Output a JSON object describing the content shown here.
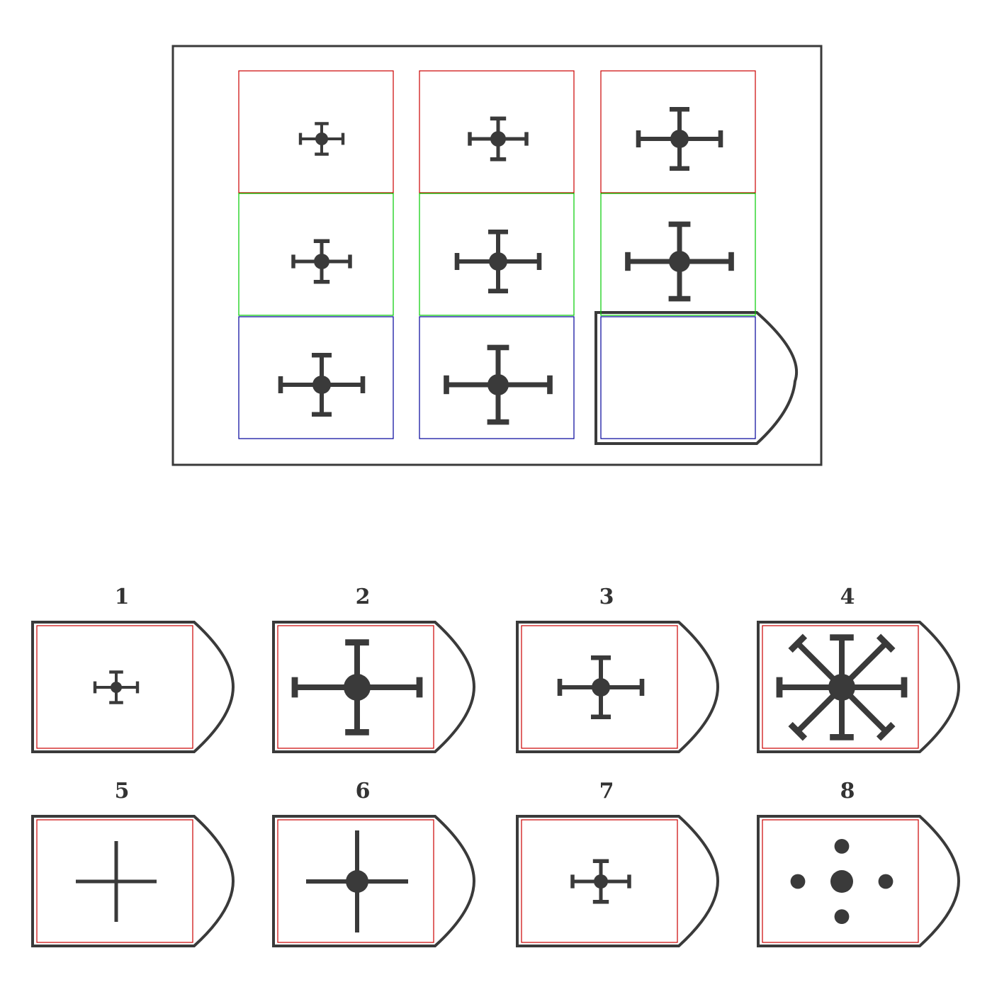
{
  "puzzle": {
    "matrix": [
      [
        {
          "arm": 30,
          "dot": 9,
          "stroke": 4,
          "cap": 7
        },
        {
          "arm": 40,
          "dot": 11,
          "stroke": 5,
          "cap": 8
        },
        {
          "arm": 58,
          "dot": 13,
          "stroke": 6,
          "cap": 10
        }
      ],
      [
        {
          "arm": 40,
          "dot": 11,
          "stroke": 5,
          "cap": 8
        },
        {
          "arm": 58,
          "dot": 13,
          "stroke": 6,
          "cap": 10
        },
        {
          "arm": 73,
          "dot": 15,
          "stroke": 7,
          "cap": 11
        }
      ],
      [
        {
          "arm": 58,
          "dot": 13,
          "stroke": 6,
          "cap": 10
        },
        {
          "arm": 73,
          "dot": 15,
          "stroke": 7,
          "cap": 11
        },
        null
      ]
    ],
    "row_colors": [
      "#cc0000",
      "#00cc00",
      "#000099"
    ],
    "blank_color": "#000099"
  },
  "options": [
    {
      "label": "1",
      "kind": "cross",
      "arm": 30,
      "dot": 8,
      "stroke": 4,
      "cap": 7
    },
    {
      "label": "2",
      "kind": "cross",
      "arm": 88,
      "dot": 19,
      "stroke": 8,
      "cap": 12
    },
    {
      "label": "3",
      "kind": "cross",
      "arm": 58,
      "dot": 13,
      "stroke": 6,
      "cap": 10
    },
    {
      "label": "4",
      "kind": "star",
      "arm": 88,
      "dot": 19,
      "stroke": 8,
      "cap": 12
    },
    {
      "label": "5",
      "kind": "plus",
      "arm": 57,
      "dot": 0,
      "stroke": 5,
      "cap": 0
    },
    {
      "label": "6",
      "kind": "plus",
      "arm": 72,
      "dot": 16,
      "stroke": 6,
      "cap": 0
    },
    {
      "label": "7",
      "kind": "cross",
      "arm": 40,
      "dot": 10,
      "stroke": 5,
      "cap": 8
    },
    {
      "label": "8",
      "kind": "dots",
      "arm": 62,
      "dot": 16,
      "stroke": 0,
      "cap": 0
    }
  ],
  "option_frame_color": "#cc0000",
  "ink": "#3a3a3a"
}
